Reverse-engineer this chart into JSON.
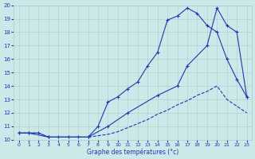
{
  "xlabel": "Graphe des températures (°c)",
  "background_color": "#cce8e8",
  "grid_color": "#aacccc",
  "line_color": "#1a3aad",
  "xlim": [
    -0.5,
    23.5
  ],
  "ylim": [
    10,
    20
  ],
  "xticks": [
    0,
    1,
    2,
    3,
    4,
    5,
    6,
    7,
    8,
    9,
    10,
    11,
    12,
    13,
    14,
    15,
    16,
    17,
    18,
    19,
    20,
    21,
    22,
    23
  ],
  "yticks": [
    10,
    11,
    12,
    13,
    14,
    15,
    16,
    17,
    18,
    19,
    20
  ],
  "line1_x": [
    0,
    1,
    2,
    3,
    4,
    5,
    6,
    7,
    8,
    9,
    10,
    11,
    12,
    13,
    14,
    15,
    16,
    17,
    18,
    19,
    20,
    21,
    22,
    23
  ],
  "line1_y": [
    10.5,
    10.5,
    10.5,
    10.2,
    10.2,
    10.2,
    10.2,
    10.2,
    11.0,
    12.8,
    13.2,
    13.8,
    14.3,
    15.5,
    16.5,
    18.9,
    19.2,
    19.8,
    19.4,
    18.5,
    18.0,
    16.0,
    14.5,
    13.2
  ],
  "line2_x": [
    0,
    1,
    3,
    7,
    9,
    11,
    14,
    16,
    17,
    19,
    20,
    21,
    22,
    23
  ],
  "line2_y": [
    10.5,
    10.5,
    10.2,
    10.2,
    11.0,
    12.0,
    13.3,
    14.0,
    15.5,
    17.0,
    19.8,
    18.5,
    18.0,
    13.2
  ],
  "line3_x": [
    0,
    1,
    2,
    3,
    4,
    5,
    6,
    7,
    8,
    9,
    10,
    11,
    12,
    13,
    14,
    15,
    16,
    17,
    18,
    19,
    20,
    21,
    22,
    23
  ],
  "line3_y": [
    10.5,
    10.5,
    10.5,
    10.2,
    10.2,
    10.2,
    10.2,
    10.2,
    10.3,
    10.4,
    10.6,
    10.9,
    11.2,
    11.5,
    11.9,
    12.2,
    12.6,
    12.9,
    13.3,
    13.6,
    14.0,
    13.0,
    12.5,
    12.0
  ]
}
